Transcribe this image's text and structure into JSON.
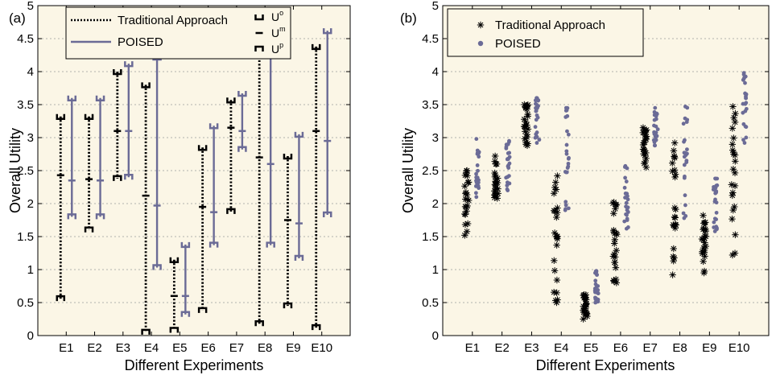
{
  "figure": {
    "xlabel": "Different Experiments",
    "ylabel": "Overall Utility",
    "background": "#fbf6e6",
    "colors": {
      "traditional": "#000000",
      "poised": "#6b6b96"
    }
  },
  "chart_data": [
    {
      "type": "range-bar",
      "panel_label": "(a)",
      "categories": [
        "E1",
        "E2",
        "E3",
        "E4",
        "E5",
        "E6",
        "E7",
        "E8",
        "E9",
        "E10"
      ],
      "ylim": [
        0,
        5
      ],
      "yticks": [
        "0",
        "0.5",
        "1",
        "1.5",
        "2",
        "2.5",
        "3",
        "3.5",
        "4",
        "4.5",
        "5"
      ],
      "grid": true,
      "legend_position": "top",
      "legend": {
        "traditional": "Traditional Approach",
        "poised": "POISED",
        "marker_labels": [
          "U",
          "U",
          "U"
        ],
        "marker_superscripts": [
          "o",
          "m",
          "p"
        ]
      },
      "series": [
        {
          "name": "Traditional Approach",
          "style": "dotted",
          "Uo": [
            3.32,
            3.32,
            4.0,
            3.8,
            1.15,
            2.85,
            3.57,
            4.28,
            2.72,
            4.38
          ],
          "Um": [
            2.43,
            2.37,
            3.1,
            2.12,
            0.6,
            1.95,
            3.15,
            2.7,
            1.75,
            3.1
          ],
          "Up": [
            0.56,
            1.6,
            2.38,
            0.05,
            0.08,
            0.38,
            1.88,
            0.18,
            0.45,
            0.12
          ]
        },
        {
          "name": "POISED",
          "style": "solid",
          "Uo": [
            3.6,
            3.6,
            4.12,
            4.22,
            1.38,
            3.18,
            3.67,
            4.55,
            3.05,
            4.62
          ],
          "Um": [
            2.35,
            2.35,
            3.1,
            1.97,
            0.6,
            1.87,
            3.1,
            2.6,
            1.7,
            2.95
          ],
          "Up": [
            1.8,
            1.8,
            2.4,
            1.03,
            0.32,
            1.37,
            2.82,
            1.37,
            1.17,
            1.83
          ]
        }
      ]
    },
    {
      "type": "scatter",
      "panel_label": "(b)",
      "categories": [
        "E1",
        "E2",
        "E3",
        "E4",
        "E5",
        "E6",
        "E7",
        "E8",
        "E9",
        "E10"
      ],
      "ylim": [
        0,
        5
      ],
      "yticks": [
        "0",
        "0.5",
        "1",
        "1.5",
        "2",
        "2.5",
        "3",
        "3.5",
        "4",
        "4.5",
        "5"
      ],
      "grid": true,
      "legend_position": "top-left",
      "series": [
        {
          "name": "Traditional Approach",
          "marker": "asterisk",
          "min": [
            1.52,
            2.08,
            2.88,
            0.5,
            0.25,
            0.8,
            2.55,
            0.92,
            0.95,
            1.22
          ],
          "max": [
            2.5,
            2.72,
            3.5,
            2.42,
            0.62,
            2.02,
            3.15,
            2.92,
            1.82,
            3.47
          ],
          "extra": [
            [],
            [],
            [],
            [],
            [],
            [],
            [],
            [],
            [],
            []
          ]
        },
        {
          "name": "POISED",
          "marker": "dot",
          "min": [
            2.1,
            2.2,
            2.92,
            1.9,
            0.5,
            1.62,
            2.88,
            1.78,
            1.58,
            2.92
          ],
          "max": [
            2.98,
            2.95,
            3.6,
            3.45,
            0.98,
            2.57,
            3.45,
            3.47,
            2.38,
            3.98
          ],
          "extra": [
            [],
            [],
            [],
            [],
            [],
            [],
            [],
            [],
            [],
            []
          ]
        }
      ]
    }
  ]
}
